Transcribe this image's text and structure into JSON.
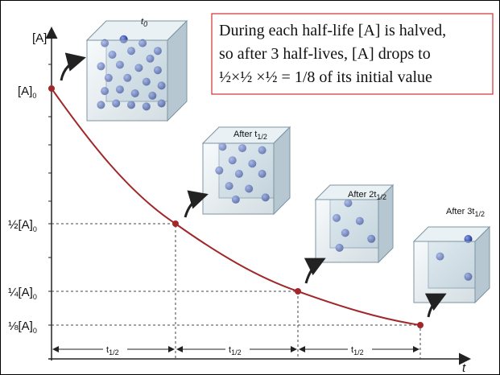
{
  "axes": {
    "y_label": "[A]",
    "x_label": "t"
  },
  "y_labels": [
    {
      "text": "[A]",
      "sub": "0"
    },
    {
      "text": "½[A]",
      "sub": "0"
    },
    {
      "text": "¼[A]",
      "sub": "0"
    },
    {
      "text": "⅛[A]",
      "sub": "0"
    }
  ],
  "cubes": [
    {
      "label": "t",
      "sub": "0"
    },
    {
      "label": "After t",
      "sub": "1/2"
    },
    {
      "label": "After 2t",
      "sub": "1/2"
    },
    {
      "label": "After 3t",
      "sub": "1/2"
    }
  ],
  "callout": {
    "lines": [
      "During each half-life [A] is halved,",
      "so after 3 half-lives, [A] drops to",
      "½×½ ×½ = 1/8 of its initial value"
    ]
  },
  "intervals": [
    {
      "label": "t",
      "sub": "1/2"
    },
    {
      "label": "t",
      "sub": "1/2"
    },
    {
      "label": "t",
      "sub": "1/2"
    }
  ]
}
